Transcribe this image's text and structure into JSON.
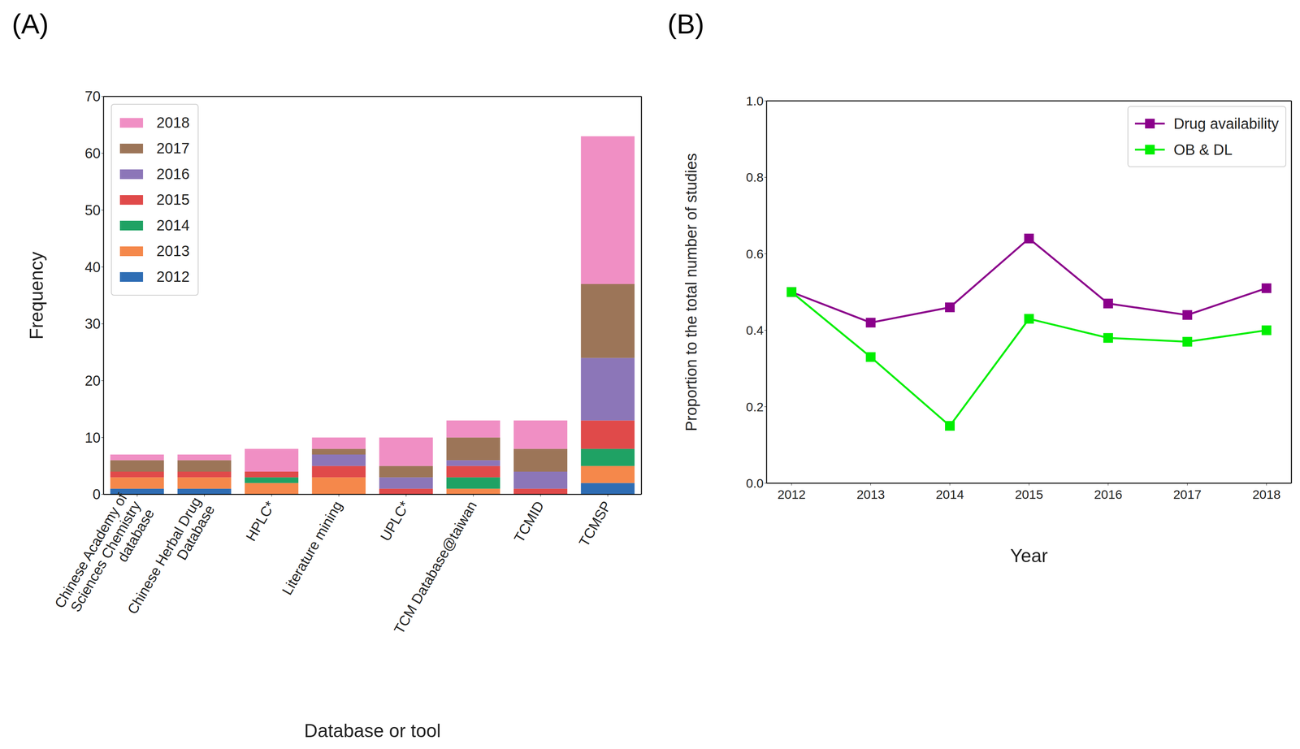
{
  "chart_data": [
    {
      "type": "bar",
      "title": "(A)",
      "x_label": "Database or tool",
      "y_label": "Frequency",
      "categories": [
        "Chinese Academy of Sciences Chemistry database",
        "Chinese Herbal Drug Database",
        "HPLC*",
        "Literature mining",
        "UPLC*",
        "TCM Database@taiwan",
        "TCMID",
        "TCMSP"
      ],
      "series": [
        {
          "name": "2012",
          "color": "#2e6db4",
          "values": [
            1,
            1,
            0,
            0,
            0,
            0,
            0,
            2
          ]
        },
        {
          "name": "2013",
          "color": "#f5884b",
          "values": [
            2,
            2,
            2,
            3,
            0,
            1,
            0,
            3
          ]
        },
        {
          "name": "2014",
          "color": "#1fa264",
          "values": [
            0,
            0,
            1,
            0,
            0,
            2,
            0,
            3
          ]
        },
        {
          "name": "2015",
          "color": "#e04a4a",
          "values": [
            1,
            1,
            1,
            2,
            1,
            2,
            1,
            5
          ]
        },
        {
          "name": "2016",
          "color": "#8c76b8",
          "values": [
            0,
            0,
            0,
            2,
            2,
            1,
            3,
            11
          ]
        },
        {
          "name": "2017",
          "color": "#9c7558",
          "values": [
            2,
            2,
            0,
            1,
            2,
            4,
            4,
            13
          ]
        },
        {
          "name": "2018",
          "color": "#f08fc4",
          "values": [
            1,
            1,
            4,
            2,
            5,
            3,
            5,
            26
          ]
        }
      ],
      "stacked": true,
      "ylim": [
        0,
        70
      ],
      "yticks": [
        0,
        10,
        20,
        30,
        40,
        50,
        60,
        70
      ],
      "legend": "upper left",
      "grid": false
    },
    {
      "type": "line",
      "title": "(B)",
      "x_label": "Year",
      "y_label": "Proportion to the total number of studies",
      "categories": [
        "2012",
        "2013",
        "2014",
        "2015",
        "2016",
        "2017",
        "2018"
      ],
      "series": [
        {
          "name": "Drug availability",
          "color": "#8b008b",
          "marker": "square",
          "values": [
            0.5,
            0.42,
            0.46,
            0.64,
            0.47,
            0.44,
            0.51
          ]
        },
        {
          "name": "OB & DL",
          "color": "#00ee00",
          "marker": "square",
          "values": [
            0.5,
            0.33,
            0.15,
            0.43,
            0.38,
            0.37,
            0.4
          ]
        }
      ],
      "ylim": [
        0,
        1
      ],
      "yticks": [
        {
          "value": 0,
          "label": "0.0"
        },
        {
          "value": 0.2,
          "label": "0.2"
        },
        {
          "value": 0.4,
          "label": "0.4"
        },
        {
          "value": 0.6,
          "label": "0.6"
        },
        {
          "value": 0.8,
          "label": "0.8"
        },
        {
          "value": 1,
          "label": "1.0"
        }
      ],
      "legend": "upper right",
      "grid": false
    }
  ]
}
